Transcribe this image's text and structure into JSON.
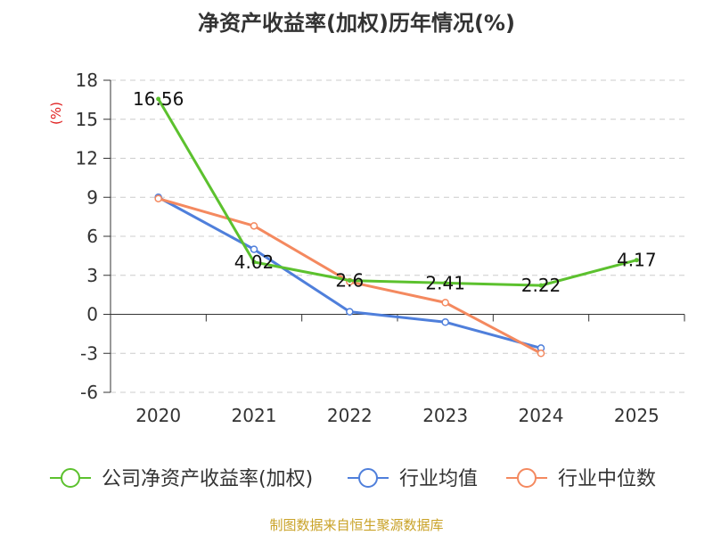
{
  "chart_data": {
    "type": "line",
    "title": "净资产收益率(加权)历年情况(%)",
    "ylabel": "(%)",
    "xlabel": "",
    "categories": [
      "2020",
      "2021",
      "2022",
      "2023",
      "2024",
      "2025"
    ],
    "ylim": [
      -6,
      18
    ],
    "yticks": [
      18,
      15,
      12,
      9,
      6,
      3,
      0,
      -3,
      -6
    ],
    "grid": true,
    "legend_position": "bottom",
    "series": [
      {
        "name": "公司净资产收益率(加权)",
        "color": "#5cc12e",
        "values": [
          16.56,
          4.02,
          2.6,
          2.41,
          2.22,
          4.17
        ],
        "labels": [
          "16.56",
          "4.02",
          "2.6",
          "2.41",
          "2.22",
          "4.17"
        ],
        "markers": false
      },
      {
        "name": "行业均值",
        "color": "#4f7fdb",
        "values": [
          9.0,
          5.0,
          0.2,
          -0.6,
          -2.6,
          null
        ],
        "markers": true
      },
      {
        "name": "行业中位数",
        "color": "#f4895f",
        "values": [
          8.9,
          6.8,
          2.5,
          0.9,
          -3.0,
          null
        ],
        "markers": true
      }
    ]
  },
  "source": "制图数据来自恒生聚源数据库"
}
